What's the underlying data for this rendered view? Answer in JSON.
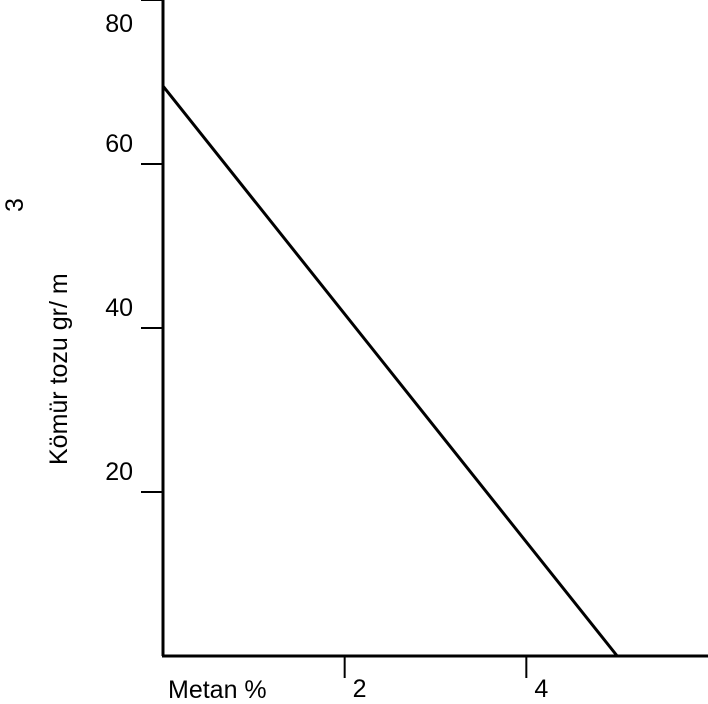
{
  "chart_data": {
    "type": "line",
    "title": "",
    "xlabel": "Metan %",
    "ylabel": "Kömür tozu  gr/ m",
    "ylabel_superscript": "3",
    "xlim": [
      0,
      6
    ],
    "ylim": [
      0,
      80
    ],
    "x_ticks": [
      2,
      4
    ],
    "y_ticks": [
      20,
      40,
      60,
      80
    ],
    "grid": false,
    "series": [
      {
        "x": [
          0,
          5
        ],
        "values": [
          69.5,
          0
        ]
      }
    ]
  }
}
